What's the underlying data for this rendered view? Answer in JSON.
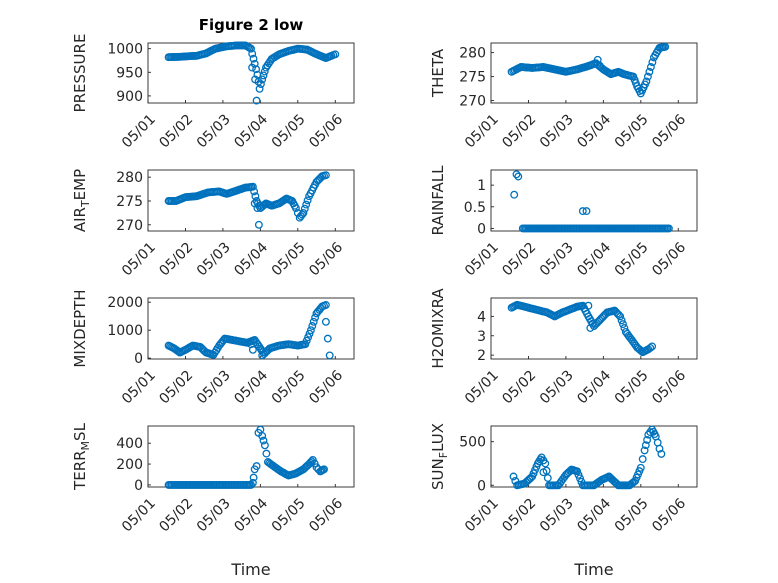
{
  "figure_title": "Figure 2 low",
  "marker_color": "#0072BD",
  "chart_data": [
    {
      "type": "scatter",
      "ylabel": "PRESSURE",
      "ylim": [
        885,
        1012
      ],
      "yticks": [
        900,
        950,
        1000
      ],
      "xlim": [
        0,
        5.5
      ],
      "xtick_values": [
        0,
        1,
        2,
        3,
        4,
        5
      ],
      "xtick_labels": [
        "05/01",
        "05/02",
        "05/03",
        "05/04",
        "05/05",
        "05/06"
      ],
      "grid": true,
      "anchors": [
        [
          0.55,
          982
        ],
        [
          0.9,
          983
        ],
        [
          1.3,
          985
        ],
        [
          1.55,
          990
        ],
        [
          1.8,
          1000
        ],
        [
          2.1,
          1005
        ],
        [
          2.4,
          1007
        ],
        [
          2.6,
          1007
        ],
        [
          2.75,
          1000
        ],
        [
          2.85,
          968
        ],
        [
          2.92,
          945
        ],
        [
          2.98,
          915
        ],
        [
          3.05,
          935
        ],
        [
          3.15,
          960
        ],
        [
          3.3,
          978
        ],
        [
          3.5,
          988
        ],
        [
          3.75,
          995
        ],
        [
          4.0,
          1000
        ],
        [
          4.25,
          998
        ],
        [
          4.45,
          990
        ],
        [
          4.6,
          985
        ],
        [
          4.75,
          980
        ],
        [
          4.9,
          985
        ],
        [
          5.0,
          988
        ]
      ],
      "outliers": [
        [
          2.78,
          960
        ],
        [
          2.86,
          935
        ],
        [
          2.9,
          890
        ]
      ]
    },
    {
      "type": "scatter",
      "ylabel": "THETA",
      "ylim": [
        269.5,
        282
      ],
      "yticks": [
        270,
        275,
        280
      ],
      "xlim": [
        0,
        5.5
      ],
      "xtick_values": [
        0,
        1,
        2,
        3,
        4,
        5
      ],
      "xtick_labels": [
        "05/01",
        "05/02",
        "05/03",
        "05/04",
        "05/05",
        "05/06"
      ],
      "grid": true,
      "anchors": [
        [
          0.55,
          276
        ],
        [
          0.8,
          277
        ],
        [
          1.1,
          276.8
        ],
        [
          1.4,
          277
        ],
        [
          1.7,
          276.5
        ],
        [
          2.0,
          276
        ],
        [
          2.3,
          276.5
        ],
        [
          2.6,
          277.2
        ],
        [
          2.8,
          277.8
        ],
        [
          3.0,
          276.5
        ],
        [
          3.2,
          275.5
        ],
        [
          3.4,
          276
        ],
        [
          3.55,
          275.5
        ],
        [
          3.8,
          275
        ],
        [
          3.9,
          273
        ],
        [
          4.0,
          271.5
        ],
        [
          4.15,
          274
        ],
        [
          4.35,
          279
        ],
        [
          4.5,
          281
        ],
        [
          4.65,
          281.2
        ]
      ],
      "outliers": [
        [
          2.85,
          278.5
        ],
        [
          2.9,
          277.3
        ]
      ]
    },
    {
      "type": "scatter",
      "ylabel": "AIR_TEMP",
      "ylim": [
        268.7,
        281.5
      ],
      "yticks": [
        270,
        275,
        280
      ],
      "xlim": [
        0,
        5.5
      ],
      "xtick_values": [
        0,
        1,
        2,
        3,
        4,
        5
      ],
      "xtick_labels": [
        "05/01",
        "05/02",
        "05/03",
        "05/04",
        "05/05",
        "05/06"
      ],
      "grid": true,
      "anchors": [
        [
          0.55,
          275
        ],
        [
          0.75,
          275
        ],
        [
          1.0,
          275.8
        ],
        [
          1.3,
          276
        ],
        [
          1.6,
          276.8
        ],
        [
          1.9,
          277
        ],
        [
          2.1,
          276.5
        ],
        [
          2.3,
          277
        ],
        [
          2.6,
          277.8
        ],
        [
          2.8,
          278
        ],
        [
          2.9,
          275
        ],
        [
          3.0,
          273.5
        ],
        [
          3.15,
          274.5
        ],
        [
          3.3,
          274
        ],
        [
          3.5,
          274.5
        ],
        [
          3.7,
          275.5
        ],
        [
          3.85,
          275
        ],
        [
          3.95,
          273.5
        ],
        [
          4.05,
          271.5
        ],
        [
          4.15,
          272.5
        ],
        [
          4.3,
          276
        ],
        [
          4.5,
          279
        ],
        [
          4.65,
          280.2
        ],
        [
          4.75,
          280.4
        ]
      ],
      "outliers": [
        [
          2.85,
          274.5
        ],
        [
          2.92,
          273.5
        ],
        [
          2.96,
          270
        ]
      ]
    },
    {
      "type": "scatter",
      "ylabel": "RAINFALL",
      "ylim": [
        -0.06,
        1.35
      ],
      "yticks": [
        0,
        0.5,
        1
      ],
      "xlim": [
        0,
        5.5
      ],
      "xtick_values": [
        0,
        1,
        2,
        3,
        4,
        5
      ],
      "xtick_labels": [
        "05/01",
        "05/02",
        "05/03",
        "05/04",
        "05/05",
        "05/06"
      ],
      "grid": true,
      "anchors": [
        [
          0.85,
          0
        ],
        [
          4.75,
          0
        ]
      ],
      "outliers": [
        [
          0.62,
          0.78
        ],
        [
          0.68,
          1.25
        ],
        [
          0.73,
          1.2
        ],
        [
          2.45,
          0.4
        ],
        [
          2.55,
          0.4
        ]
      ]
    },
    {
      "type": "scatter",
      "ylabel": "MIXDEPTH",
      "ylim": [
        -30,
        2150
      ],
      "yticks": [
        0,
        1000,
        2000
      ],
      "xlim": [
        0,
        5.5
      ],
      "xtick_values": [
        0,
        1,
        2,
        3,
        4,
        5
      ],
      "xtick_labels": [
        "05/01",
        "05/02",
        "05/03",
        "05/04",
        "05/05",
        "05/06"
      ],
      "grid": true,
      "anchors": [
        [
          0.55,
          450
        ],
        [
          0.7,
          350
        ],
        [
          0.85,
          200
        ],
        [
          1.0,
          300
        ],
        [
          1.2,
          450
        ],
        [
          1.4,
          400
        ],
        [
          1.55,
          200
        ],
        [
          1.75,
          120
        ],
        [
          1.9,
          450
        ],
        [
          2.05,
          700
        ],
        [
          2.25,
          650
        ],
        [
          2.45,
          600
        ],
        [
          2.65,
          550
        ],
        [
          2.85,
          650
        ],
        [
          3.0,
          350
        ],
        [
          3.1,
          150
        ],
        [
          3.25,
          350
        ],
        [
          3.5,
          450
        ],
        [
          3.75,
          500
        ],
        [
          4.0,
          450
        ],
        [
          4.2,
          500
        ],
        [
          4.35,
          1000
        ],
        [
          4.5,
          1600
        ],
        [
          4.65,
          1850
        ],
        [
          4.75,
          1900
        ]
      ],
      "outliers": [
        [
          2.75,
          500
        ],
        [
          2.8,
          300
        ],
        [
          3.05,
          100
        ],
        [
          4.75,
          1300
        ],
        [
          4.8,
          700
        ],
        [
          4.85,
          100
        ]
      ]
    },
    {
      "type": "scatter",
      "ylabel": "H2OMIXRA",
      "ylim": [
        1.8,
        4.95
      ],
      "yticks": [
        2,
        3,
        4
      ],
      "xlim": [
        0,
        5.5
      ],
      "xtick_values": [
        0,
        1,
        2,
        3,
        4,
        5
      ],
      "xtick_labels": [
        "05/01",
        "05/02",
        "05/03",
        "05/04",
        "05/05",
        "05/06"
      ],
      "grid": true,
      "anchors": [
        [
          0.55,
          4.45
        ],
        [
          0.7,
          4.6
        ],
        [
          0.9,
          4.5
        ],
        [
          1.1,
          4.4
        ],
        [
          1.3,
          4.3
        ],
        [
          1.5,
          4.2
        ],
        [
          1.7,
          4.0
        ],
        [
          1.9,
          4.2
        ],
        [
          2.1,
          4.35
        ],
        [
          2.3,
          4.5
        ],
        [
          2.45,
          4.55
        ],
        [
          2.6,
          4.0
        ],
        [
          2.75,
          3.5
        ],
        [
          2.9,
          3.8
        ],
        [
          3.1,
          4.2
        ],
        [
          3.3,
          4.3
        ],
        [
          3.45,
          4.0
        ],
        [
          3.6,
          3.2
        ],
        [
          3.75,
          2.8
        ],
        [
          3.9,
          2.4
        ],
        [
          4.05,
          2.15
        ],
        [
          4.2,
          2.3
        ],
        [
          4.3,
          2.45
        ]
      ],
      "outliers": [
        [
          2.6,
          4.55
        ],
        [
          2.65,
          3.4
        ]
      ]
    },
    {
      "type": "scatter",
      "ylabel": "TERR_MSL",
      "ylim": [
        -20,
        565
      ],
      "yticks": [
        0,
        200,
        400
      ],
      "xlim": [
        0,
        5.5
      ],
      "xtick_values": [
        0,
        1,
        2,
        3,
        4,
        5
      ],
      "xtick_labels": [
        "05/01",
        "05/02",
        "05/03",
        "05/04",
        "05/05",
        "05/06"
      ],
      "grid": true,
      "anchors": [
        [
          0.55,
          0
        ],
        [
          2.75,
          0
        ],
        [
          2.8,
          20
        ],
        [
          2.85,
          150
        ],
        [
          2.9,
          180
        ],
        [
          2.95,
          500
        ],
        [
          3.0,
          530
        ],
        [
          3.05,
          470
        ],
        [
          3.12,
          380
        ],
        [
          3.2,
          220
        ],
        [
          3.35,
          180
        ],
        [
          3.55,
          130
        ],
        [
          3.75,
          90
        ],
        [
          3.95,
          110
        ],
        [
          4.15,
          150
        ],
        [
          4.3,
          200
        ],
        [
          4.4,
          240
        ],
        [
          4.5,
          170
        ],
        [
          4.6,
          130
        ],
        [
          4.7,
          150
        ]
      ],
      "outliers": [
        [
          2.82,
          70
        ]
      ]
    },
    {
      "type": "scatter",
      "ylabel": "SUN_FLUX",
      "ylim": [
        -20,
        680
      ],
      "yticks": [
        0,
        500
      ],
      "xlim": [
        0,
        5.5
      ],
      "xtick_values": [
        0,
        1,
        2,
        3,
        4,
        5
      ],
      "xtick_labels": [
        "05/01",
        "05/02",
        "05/03",
        "05/04",
        "05/05",
        "05/06"
      ],
      "grid": true,
      "anchors": [
        [
          0.7,
          0
        ],
        [
          0.9,
          20
        ],
        [
          1.1,
          100
        ],
        [
          1.25,
          250
        ],
        [
          1.35,
          320
        ],
        [
          1.45,
          250
        ],
        [
          1.55,
          0
        ],
        [
          1.8,
          0
        ],
        [
          2.0,
          120
        ],
        [
          2.15,
          180
        ],
        [
          2.3,
          160
        ],
        [
          2.45,
          0
        ],
        [
          2.75,
          0
        ],
        [
          2.95,
          60
        ],
        [
          3.15,
          100
        ],
        [
          3.25,
          60
        ],
        [
          3.4,
          0
        ],
        [
          3.7,
          0
        ],
        [
          3.85,
          50
        ],
        [
          4.0,
          200
        ],
        [
          4.1,
          400
        ],
        [
          4.2,
          580
        ],
        [
          4.3,
          640
        ],
        [
          4.4,
          560
        ],
        [
          4.5,
          420
        ],
        [
          4.55,
          360
        ]
      ],
      "outliers": [
        [
          0.6,
          100
        ],
        [
          0.65,
          50
        ],
        [
          1.4,
          150
        ]
      ]
    }
  ],
  "xlabel": "Time"
}
